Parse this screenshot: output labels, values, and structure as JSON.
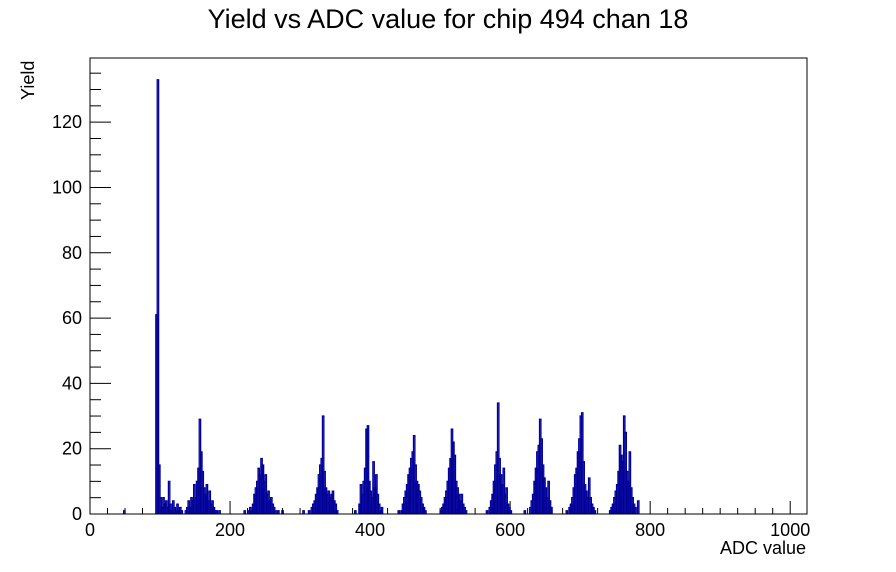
{
  "chart_data": {
    "type": "bar",
    "title": "Yield vs ADC value for chip 494 chan 18",
    "xlabel": "ADC value",
    "ylabel": "Yield",
    "xlim": [
      0,
      1024
    ],
    "ylim": [
      0,
      139.65
    ],
    "x_ticks": [
      "0",
      "200",
      "400",
      "600",
      "800",
      "1000"
    ],
    "y_ticks": [
      "0",
      "20",
      "40",
      "60",
      "80",
      "100",
      "120"
    ],
    "x_tick_values": [
      0,
      200,
      400,
      600,
      800,
      1000
    ],
    "y_tick_values": [
      0,
      20,
      40,
      60,
      80,
      100,
      120
    ],
    "bin_width": 2,
    "grid": false,
    "line_color": "#000099",
    "bins": [
      [
        48,
        1
      ],
      [
        94,
        61
      ],
      [
        96,
        133
      ],
      [
        98,
        15
      ],
      [
        100,
        5
      ],
      [
        102,
        2
      ],
      [
        104,
        5
      ],
      [
        106,
        3
      ],
      [
        108,
        4
      ],
      [
        110,
        2
      ],
      [
        112,
        10
      ],
      [
        114,
        3
      ],
      [
        116,
        1
      ],
      [
        118,
        4
      ],
      [
        120,
        2
      ],
      [
        122,
        1
      ],
      [
        124,
        3
      ],
      [
        126,
        1
      ],
      [
        128,
        2
      ],
      [
        130,
        1
      ],
      [
        136,
        1
      ],
      [
        138,
        2
      ],
      [
        140,
        4
      ],
      [
        142,
        2
      ],
      [
        144,
        5
      ],
      [
        146,
        4
      ],
      [
        148,
        9
      ],
      [
        150,
        5
      ],
      [
        152,
        10
      ],
      [
        154,
        14
      ],
      [
        156,
        29
      ],
      [
        158,
        19
      ],
      [
        160,
        13
      ],
      [
        162,
        8
      ],
      [
        164,
        6
      ],
      [
        166,
        9
      ],
      [
        168,
        4
      ],
      [
        170,
        7
      ],
      [
        172,
        3
      ],
      [
        174,
        4
      ],
      [
        176,
        2
      ],
      [
        178,
        1
      ],
      [
        180,
        1
      ],
      [
        184,
        1
      ],
      [
        220,
        1
      ],
      [
        226,
        1
      ],
      [
        228,
        2
      ],
      [
        230,
        1
      ],
      [
        232,
        3
      ],
      [
        234,
        6
      ],
      [
        236,
        8
      ],
      [
        238,
        10
      ],
      [
        240,
        14
      ],
      [
        242,
        12
      ],
      [
        244,
        17
      ],
      [
        246,
        15
      ],
      [
        248,
        10
      ],
      [
        250,
        12
      ],
      [
        252,
        6
      ],
      [
        254,
        7
      ],
      [
        256,
        4
      ],
      [
        258,
        5
      ],
      [
        260,
        3
      ],
      [
        262,
        2
      ],
      [
        264,
        1
      ],
      [
        268,
        1
      ],
      [
        274,
        1
      ],
      [
        304,
        1
      ],
      [
        312,
        1
      ],
      [
        316,
        2
      ],
      [
        318,
        3
      ],
      [
        320,
        4
      ],
      [
        322,
        6
      ],
      [
        324,
        8
      ],
      [
        326,
        12
      ],
      [
        328,
        15
      ],
      [
        330,
        17
      ],
      [
        332,
        30
      ],
      [
        334,
        13
      ],
      [
        336,
        8
      ],
      [
        338,
        6
      ],
      [
        340,
        7
      ],
      [
        342,
        5
      ],
      [
        344,
        6
      ],
      [
        346,
        7
      ],
      [
        348,
        4
      ],
      [
        350,
        3
      ],
      [
        352,
        1
      ],
      [
        378,
        1
      ],
      [
        384,
        3
      ],
      [
        386,
        9
      ],
      [
        388,
        6
      ],
      [
        390,
        10
      ],
      [
        392,
        14
      ],
      [
        394,
        26
      ],
      [
        396,
        27
      ],
      [
        398,
        10
      ],
      [
        400,
        7
      ],
      [
        402,
        5
      ],
      [
        404,
        16
      ],
      [
        406,
        8
      ],
      [
        408,
        12
      ],
      [
        410,
        6
      ],
      [
        412,
        3
      ],
      [
        414,
        1
      ],
      [
        416,
        2
      ],
      [
        440,
        1
      ],
      [
        444,
        1
      ],
      [
        446,
        3
      ],
      [
        448,
        5
      ],
      [
        450,
        7
      ],
      [
        452,
        9
      ],
      [
        454,
        12
      ],
      [
        456,
        14
      ],
      [
        458,
        17
      ],
      [
        460,
        19
      ],
      [
        462,
        24
      ],
      [
        464,
        15
      ],
      [
        466,
        10
      ],
      [
        468,
        9
      ],
      [
        470,
        7
      ],
      [
        472,
        5
      ],
      [
        474,
        3
      ],
      [
        476,
        2
      ],
      [
        478,
        1
      ],
      [
        500,
        1
      ],
      [
        502,
        2
      ],
      [
        504,
        3
      ],
      [
        506,
        5
      ],
      [
        508,
        7
      ],
      [
        510,
        10
      ],
      [
        512,
        14
      ],
      [
        514,
        17
      ],
      [
        516,
        26
      ],
      [
        518,
        22
      ],
      [
        520,
        18
      ],
      [
        522,
        10
      ],
      [
        524,
        8
      ],
      [
        526,
        6
      ],
      [
        528,
        4
      ],
      [
        530,
        6
      ],
      [
        532,
        3
      ],
      [
        534,
        2
      ],
      [
        536,
        1
      ],
      [
        566,
        1
      ],
      [
        570,
        2
      ],
      [
        572,
        4
      ],
      [
        574,
        6
      ],
      [
        576,
        10
      ],
      [
        578,
        15
      ],
      [
        580,
        19
      ],
      [
        582,
        34
      ],
      [
        584,
        17
      ],
      [
        586,
        12
      ],
      [
        588,
        9
      ],
      [
        590,
        14
      ],
      [
        592,
        6
      ],
      [
        594,
        8
      ],
      [
        596,
        3
      ],
      [
        598,
        2
      ],
      [
        600,
        1
      ],
      [
        620,
        1
      ],
      [
        628,
        2
      ],
      [
        630,
        4
      ],
      [
        632,
        6
      ],
      [
        634,
        10
      ],
      [
        636,
        14
      ],
      [
        638,
        19
      ],
      [
        640,
        21
      ],
      [
        642,
        29
      ],
      [
        644,
        23
      ],
      [
        646,
        15
      ],
      [
        648,
        11
      ],
      [
        650,
        8
      ],
      [
        652,
        5
      ],
      [
        654,
        10
      ],
      [
        656,
        4
      ],
      [
        658,
        2
      ],
      [
        680,
        1
      ],
      [
        684,
        2
      ],
      [
        686,
        3
      ],
      [
        688,
        5
      ],
      [
        690,
        8
      ],
      [
        692,
        12
      ],
      [
        694,
        14
      ],
      [
        696,
        19
      ],
      [
        698,
        23
      ],
      [
        700,
        30
      ],
      [
        702,
        31
      ],
      [
        704,
        16
      ],
      [
        706,
        9
      ],
      [
        708,
        7
      ],
      [
        710,
        5
      ],
      [
        712,
        11
      ],
      [
        714,
        5
      ],
      [
        716,
        3
      ],
      [
        718,
        2
      ],
      [
        720,
        1
      ],
      [
        742,
        1
      ],
      [
        744,
        2
      ],
      [
        746,
        3
      ],
      [
        748,
        5
      ],
      [
        750,
        7
      ],
      [
        752,
        9
      ],
      [
        754,
        13
      ],
      [
        756,
        21
      ],
      [
        758,
        18
      ],
      [
        760,
        16
      ],
      [
        762,
        30
      ],
      [
        764,
        25
      ],
      [
        766,
        13
      ],
      [
        768,
        10
      ],
      [
        770,
        19
      ],
      [
        772,
        8
      ],
      [
        774,
        5
      ],
      [
        776,
        3
      ],
      [
        778,
        2
      ],
      [
        782,
        4
      ]
    ]
  }
}
